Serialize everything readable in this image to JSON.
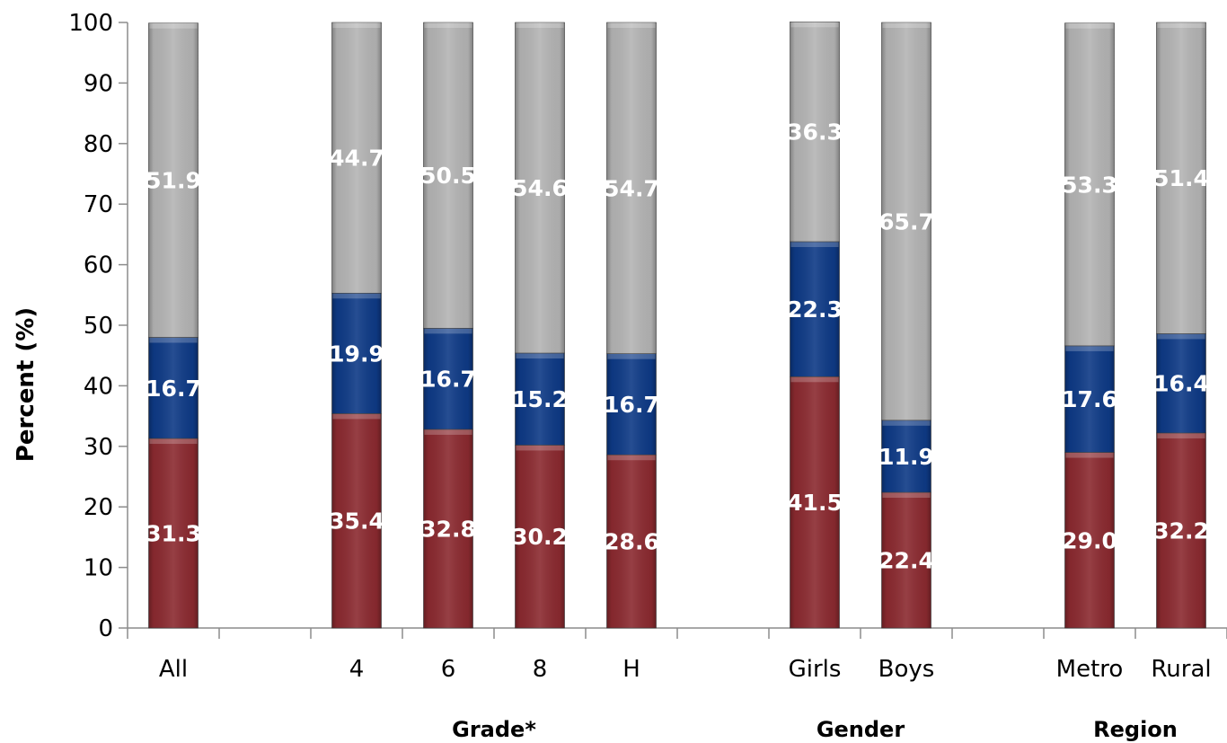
{
  "chart_data": {
    "type": "bar",
    "stacked": true,
    "ylabel": "Percent (%)",
    "ylim": [
      0,
      100
    ],
    "yticks": [
      0,
      10,
      20,
      30,
      40,
      50,
      60,
      70,
      80,
      90,
      100
    ],
    "grid": false,
    "slots": [
      "All",
      "",
      "4",
      "6",
      "8",
      "H",
      "",
      "Girls",
      "Boys",
      "",
      "Metro",
      "Rural"
    ],
    "categories": [
      "All",
      "4",
      "6",
      "8",
      "H",
      "Girls",
      "Boys",
      "Metro",
      "Rural"
    ],
    "groups": [
      {
        "label": "Grade*",
        "categories": [
          "4",
          "6",
          "8",
          "H"
        ]
      },
      {
        "label": "Gender",
        "categories": [
          "Girls",
          "Boys"
        ]
      },
      {
        "label": "Region",
        "categories": [
          "Metro",
          "Rural"
        ]
      }
    ],
    "series": [
      {
        "color": "#8B2A30",
        "values": [
          31.3,
          35.4,
          32.8,
          30.2,
          28.6,
          41.5,
          22.4,
          29.0,
          32.2
        ]
      },
      {
        "color": "#0E3A86",
        "values": [
          16.7,
          19.9,
          16.7,
          15.2,
          16.7,
          22.3,
          11.9,
          17.6,
          16.4
        ]
      },
      {
        "color": "#B4B4B4",
        "values": [
          51.9,
          44.7,
          50.5,
          54.6,
          54.7,
          36.3,
          65.7,
          53.3,
          51.4
        ]
      }
    ]
  }
}
